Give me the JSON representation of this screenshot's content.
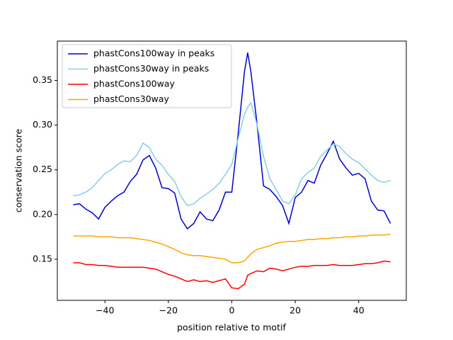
{
  "chart_data": {
    "type": "line",
    "xlabel": "position relative to motif",
    "ylabel": "conservation score",
    "x": [
      -50,
      -48,
      -46,
      -44,
      -42,
      -40,
      -38,
      -36,
      -34,
      -32,
      -30,
      -28,
      -26,
      -24,
      -22,
      -20,
      -18,
      -16,
      -14,
      -12,
      -10,
      -8,
      -6,
      -4,
      -2,
      0,
      2,
      4,
      5,
      6,
      8,
      10,
      12,
      14,
      16,
      18,
      20,
      22,
      24,
      26,
      28,
      30,
      32,
      34,
      36,
      38,
      40,
      42,
      44,
      46,
      48,
      50
    ],
    "series": [
      {
        "name": "phastCons100way in peaks",
        "color": "#0000cd",
        "values": [
          0.211,
          0.212,
          0.206,
          0.202,
          0.195,
          0.208,
          0.215,
          0.221,
          0.225,
          0.237,
          0.245,
          0.261,
          0.266,
          0.252,
          0.23,
          0.229,
          0.224,
          0.195,
          0.184,
          0.19,
          0.203,
          0.195,
          0.193,
          0.205,
          0.225,
          0.225,
          0.29,
          0.36,
          0.381,
          0.36,
          0.3,
          0.232,
          0.228,
          0.22,
          0.21,
          0.19,
          0.219,
          0.225,
          0.238,
          0.235,
          0.255,
          0.268,
          0.282,
          0.262,
          0.252,
          0.244,
          0.246,
          0.24,
          0.215,
          0.205,
          0.204,
          0.19
        ]
      },
      {
        "name": "phastCons30way in peaks",
        "color": "#87ceeb",
        "values": [
          0.221,
          0.222,
          0.225,
          0.23,
          0.238,
          0.246,
          0.25,
          0.256,
          0.26,
          0.259,
          0.266,
          0.28,
          0.275,
          0.262,
          0.255,
          0.245,
          0.237,
          0.22,
          0.21,
          0.212,
          0.218,
          0.223,
          0.228,
          0.235,
          0.245,
          0.256,
          0.285,
          0.312,
          0.32,
          0.325,
          0.3,
          0.265,
          0.24,
          0.228,
          0.215,
          0.212,
          0.222,
          0.24,
          0.247,
          0.252,
          0.265,
          0.272,
          0.279,
          0.276,
          0.268,
          0.262,
          0.258,
          0.251,
          0.244,
          0.238,
          0.236,
          0.238
        ]
      },
      {
        "name": "phastCons100way",
        "color": "#ff0000",
        "values": [
          0.146,
          0.146,
          0.144,
          0.144,
          0.143,
          0.143,
          0.142,
          0.141,
          0.141,
          0.141,
          0.141,
          0.141,
          0.14,
          0.139,
          0.136,
          0.133,
          0.131,
          0.128,
          0.125,
          0.127,
          0.125,
          0.126,
          0.124,
          0.126,
          0.128,
          0.118,
          0.117,
          0.122,
          0.132,
          0.134,
          0.137,
          0.136,
          0.14,
          0.139,
          0.137,
          0.139,
          0.141,
          0.142,
          0.142,
          0.143,
          0.143,
          0.143,
          0.144,
          0.143,
          0.143,
          0.143,
          0.144,
          0.145,
          0.145,
          0.146,
          0.148,
          0.147
        ]
      },
      {
        "name": "phastCons30way",
        "color": "#ffa500",
        "values": [
          0.176,
          0.176,
          0.176,
          0.176,
          0.175,
          0.175,
          0.175,
          0.174,
          0.174,
          0.174,
          0.173,
          0.172,
          0.171,
          0.169,
          0.167,
          0.164,
          0.161,
          0.157,
          0.155,
          0.154,
          0.154,
          0.153,
          0.152,
          0.151,
          0.15,
          0.146,
          0.146,
          0.148,
          0.152,
          0.156,
          0.161,
          0.163,
          0.165,
          0.168,
          0.169,
          0.17,
          0.17,
          0.171,
          0.172,
          0.172,
          0.173,
          0.173,
          0.174,
          0.174,
          0.175,
          0.175,
          0.176,
          0.176,
          0.177,
          0.177,
          0.177,
          0.178
        ]
      }
    ],
    "xlim": [
      -55,
      55
    ],
    "ylim": [
      0.104,
      0.394
    ],
    "xticks": [
      {
        "value": -40,
        "label": "−40"
      },
      {
        "value": -20,
        "label": "−20"
      },
      0,
      20,
      40
    ],
    "yticks": [
      0.15,
      {
        "value": 0.2,
        "label": "0.20"
      },
      0.25,
      {
        "value": 0.3,
        "label": "0.30"
      },
      0.35
    ],
    "legend": "upper left",
    "grid": false
  }
}
